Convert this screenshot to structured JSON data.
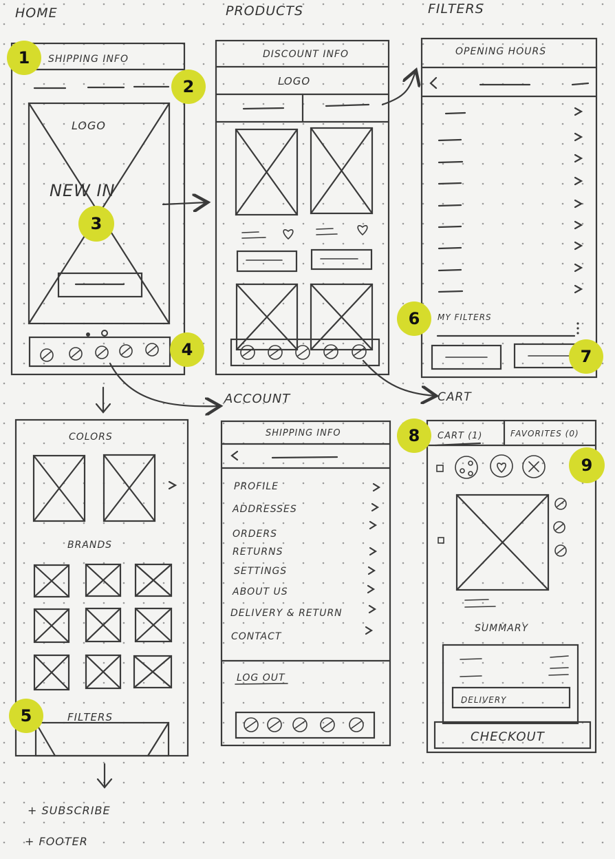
{
  "columns": {
    "home": "HOME",
    "products": "PRODUCTS",
    "filters": "FILTERS"
  },
  "home": {
    "shipping_info": "SHIPPING INFO",
    "logo": "LOGO",
    "new_in": "NEW IN",
    "colors": "COLORS",
    "brands": "BRANDS",
    "filters": "FILTERS",
    "subscribe": "+ SUBSCRIBE",
    "footer": "+ FOOTER"
  },
  "products": {
    "discount_info": "DISCOUNT INFO",
    "logo": "LOGO"
  },
  "filters_screen": {
    "opening_hours": "OPENING HOURS",
    "my_filters": "MY FILTERS"
  },
  "account": {
    "label": "ACCOUNT",
    "shipping_info": "SHIPPING INFO",
    "menu": [
      "PROFILE",
      "ADDRESSES",
      "ORDERS",
      "RETURNS",
      "SETTINGS",
      "ABOUT US",
      "DELIVERY & RETURN",
      "CONTACT"
    ],
    "logout": "LOG OUT"
  },
  "cart": {
    "label": "CART",
    "tab_cart": "CART (1)",
    "tab_favorites": "FAVORITES (0)",
    "summary": "SUMMARY",
    "delivery": "DELIVERY",
    "checkout": "CHECKOUT"
  },
  "badges": [
    "1",
    "2",
    "3",
    "4",
    "5",
    "6",
    "7",
    "8",
    "9"
  ],
  "colors": {
    "badge": "#d6dc2c",
    "ink": "#3a3a3a",
    "paper": "#f4f4f2"
  }
}
